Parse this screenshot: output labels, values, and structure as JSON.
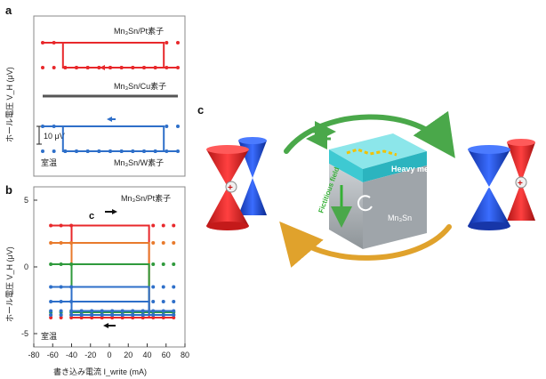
{
  "panels": {
    "a": {
      "letter": "a",
      "ylabel": "ホール電圧 V_H (μV)",
      "labels": {
        "pt": "Mn₃Sn/Pt素子",
        "cu": "Mn₃Sn/Cu素子",
        "w": "Mn₃Sn/W素子",
        "room": "室温",
        "scale": "10 μV"
      }
    },
    "b": {
      "letter": "b",
      "ylabel": "ホール電圧 V_H (μV)",
      "xlabel": "書き込み電流 I_write (mA)",
      "label_pt": "Mn₃Sn/Pt素子",
      "label_c": "c",
      "label_room": "室温"
    },
    "c": {
      "letter": "c",
      "label_heavy": "Heavy metal",
      "label_mn3sn": "Mn₃Sn",
      "label_field": "Fictitious field",
      "plus": "+",
      "minus": "−"
    }
  },
  "colors": {
    "red": "#e8282b",
    "orange": "#e87a2c",
    "green": "#2f9a3c",
    "blue": "#2e6fc9",
    "gray": "#555555"
  },
  "chart_data": [
    {
      "type": "line",
      "panel": "a",
      "xlabel": "",
      "ylabel": "ホール電圧 V_H (μV)",
      "series": [
        {
          "name": "Mn₃Sn/Pt素子",
          "color": "#e8282b",
          "loop": {
            "high": 1,
            "low": -1,
            "switch_up": 43,
            "switch_down": -38
          }
        },
        {
          "name": "Mn₃Sn/Cu素子",
          "color": "#555555",
          "loop": {
            "high": 0.05,
            "low": -0.05,
            "switch_up": 43,
            "switch_down": -38
          }
        },
        {
          "name": "Mn₃Sn/W素子",
          "color": "#2e6fc9",
          "loop": {
            "high": 1,
            "low": -1,
            "switch_up": 43,
            "switch_down": -38
          }
        }
      ]
    },
    {
      "type": "line",
      "panel": "b",
      "xlabel": "書き込み電流 I_write (mA)",
      "ylabel": "ホール電圧 V_H (μV)",
      "xlim": [
        -80,
        80
      ],
      "ylim": [
        -6,
        6
      ],
      "x_ticks": [
        -80,
        -60,
        -40,
        -20,
        0,
        20,
        40,
        60,
        80
      ],
      "y_ticks": [
        5,
        0,
        -5
      ],
      "series": [
        {
          "color": "#e8282b",
          "top": 3.1,
          "bottom": -3.8
        },
        {
          "color": "#e87a2c",
          "top": 1.8,
          "bottom": -3.6
        },
        {
          "color": "#2f9a3c",
          "top": 0.2,
          "bottom": -3.4
        },
        {
          "color": "#2e6fc9",
          "top": -1.5,
          "bottom": -3.3
        },
        {
          "color": "#2e6fc9",
          "top": -2.6,
          "bottom": -3.6
        }
      ]
    }
  ]
}
